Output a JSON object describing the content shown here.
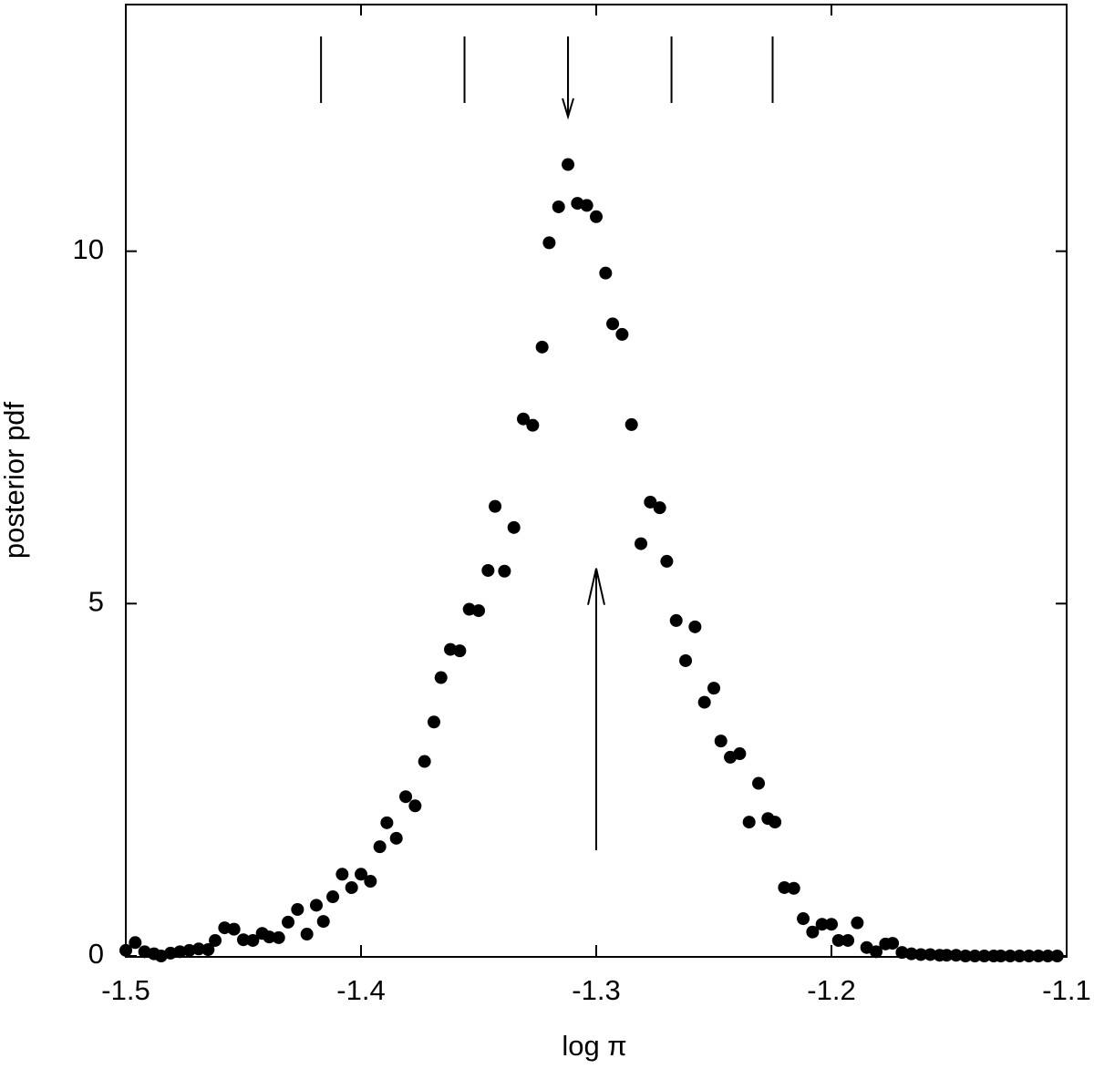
{
  "chart_data": {
    "type": "scatter",
    "xlabel": "log π",
    "ylabel": "posterior pdf",
    "xlim": [
      -1.5,
      -1.1
    ],
    "ylim": [
      0,
      13.5
    ],
    "xticks": [
      -1.5,
      -1.4,
      -1.3,
      -1.2,
      -1.1
    ],
    "yticks": [
      0,
      5,
      10
    ],
    "color": "#000000",
    "x": [
      -1.5,
      -1.496,
      -1.492,
      -1.488,
      -1.485,
      -1.481,
      -1.477,
      -1.473,
      -1.469,
      -1.465,
      -1.462,
      -1.458,
      -1.454,
      -1.45,
      -1.446,
      -1.442,
      -1.439,
      -1.435,
      -1.431,
      -1.427,
      -1.423,
      -1.419,
      -1.416,
      -1.412,
      -1.408,
      -1.404,
      -1.4,
      -1.396,
      -1.392,
      -1.389,
      -1.385,
      -1.381,
      -1.377,
      -1.373,
      -1.369,
      -1.366,
      -1.362,
      -1.358,
      -1.354,
      -1.35,
      -1.346,
      -1.343,
      -1.339,
      -1.335,
      -1.331,
      -1.327,
      -1.323,
      -1.32,
      -1.316,
      -1.312,
      -1.308,
      -1.304,
      -1.3,
      -1.296,
      -1.293,
      -1.289,
      -1.285,
      -1.281,
      -1.277,
      -1.273,
      -1.27,
      -1.266,
      -1.262,
      -1.258,
      -1.254,
      -1.25,
      -1.247,
      -1.243,
      -1.239,
      -1.235,
      -1.231,
      -1.227,
      -1.224,
      -1.22,
      -1.216,
      -1.212,
      -1.208,
      -1.204,
      -1.2,
      -1.197,
      -1.193,
      -1.189,
      -1.185,
      -1.181,
      -1.177,
      -1.174,
      -1.17,
      -1.166,
      -1.162,
      -1.158,
      -1.154,
      -1.151,
      -1.147,
      -1.143,
      -1.139,
      -1.135,
      -1.131,
      -1.128,
      -1.124,
      -1.12,
      -1.116,
      -1.112,
      -1.108,
      -1.104
    ],
    "values": [
      0.08,
      0.19,
      0.06,
      0.03,
      0,
      0.04,
      0.06,
      0.08,
      0.1,
      0.09,
      0.22,
      0.4,
      0.38,
      0.23,
      0.22,
      0.32,
      0.27,
      0.26,
      0.48,
      0.66,
      0.31,
      0.72,
      0.49,
      0.84,
      1.16,
      0.97,
      1.16,
      1.06,
      1.55,
      1.89,
      1.67,
      2.26,
      2.13,
      2.76,
      3.32,
      3.95,
      4.35,
      4.33,
      4.92,
      4.9,
      5.47,
      6.38,
      5.46,
      6.08,
      7.62,
      7.53,
      8.64,
      10.12,
      10.63,
      11.23,
      10.68,
      10.65,
      10.49,
      9.69,
      8.97,
      8.82,
      7.54,
      5.85,
      6.44,
      6.36,
      5.6,
      4.76,
      4.19,
      4.67,
      3.6,
      3.8,
      3.05,
      2.82,
      2.87,
      1.9,
      2.45,
      1.95,
      1.9,
      0.97,
      0.96,
      0.53,
      0.34,
      0.45,
      0.45,
      0.22,
      0.22,
      0.47,
      0.12,
      0.06,
      0.17,
      0.18,
      0.05,
      0.03,
      0.02,
      0.02,
      0.01,
      0.01,
      0.01,
      0,
      0,
      0,
      0,
      0,
      0,
      0,
      0,
      0,
      0,
      0
    ],
    "quantile_marks": [
      -1.417,
      -1.356,
      -1.312,
      -1.268,
      -1.225
    ],
    "mode_arrow": {
      "x": -1.312
    },
    "estimate_arrow": {
      "x": -1.3,
      "y": [
        1.5,
        5.5
      ]
    }
  }
}
